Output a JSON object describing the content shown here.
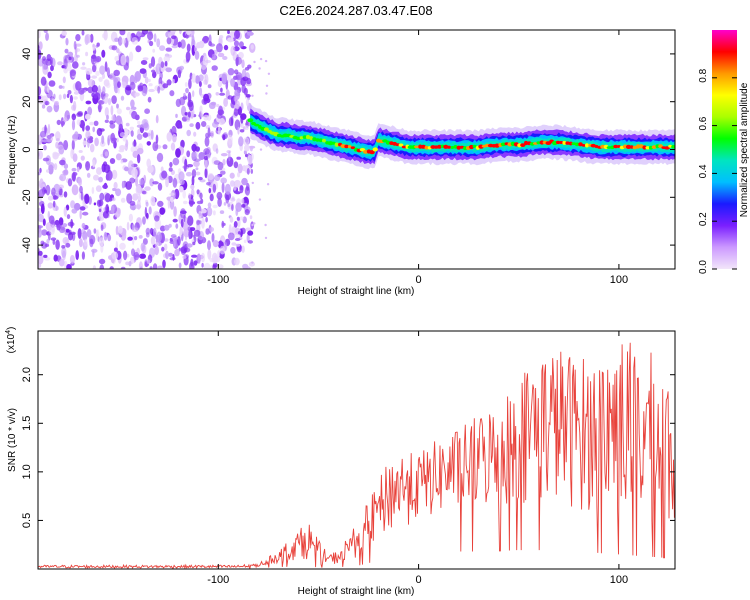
{
  "title": "C2E6.2024.287.03.47.E08",
  "chart_data": [
    {
      "type": "heatmap",
      "xlabel": "Height of straight line (km)",
      "ylabel": "Frequency (Hz)",
      "xlim": [
        -190,
        128
      ],
      "ylim": [
        -50,
        50
      ],
      "xticks": [
        -100,
        0,
        100
      ],
      "yticks": [
        -40,
        -20,
        0,
        20,
        40
      ],
      "noise_region_x": [
        -190,
        -83
      ],
      "ridge": {
        "x": [
          -84,
          -80,
          -75,
          -70,
          -65,
          -60,
          -55,
          -50,
          -45,
          -40,
          -35,
          -30,
          -25,
          -22,
          -20,
          -15,
          -10,
          -5,
          0,
          10,
          20,
          30,
          40,
          50,
          60,
          70,
          80,
          90,
          100,
          110,
          120,
          128
        ],
        "y": [
          12,
          10,
          8,
          6,
          6,
          5,
          5,
          4,
          3,
          2,
          1,
          0,
          -1,
          -1,
          4,
          3,
          2,
          1,
          1,
          1,
          1,
          1,
          2,
          2,
          3,
          3,
          2,
          1,
          1,
          1,
          1,
          1
        ]
      },
      "colorbar": {
        "label": "Normalized spectral amplitude",
        "range": [
          0,
          1
        ],
        "ticks": [
          0.0,
          0.2,
          0.4,
          0.6,
          0.8
        ],
        "tick_labels": [
          "0.0",
          "0.2",
          "0.4",
          "0.6",
          "0.8"
        ],
        "colors": [
          "#f2e6fa",
          "#cc99ff",
          "#7a1fff",
          "#1a1aff",
          "#00bfff",
          "#00e5c0",
          "#00ff00",
          "#aaff00",
          "#ffff00",
          "#ff9900",
          "#ff0000",
          "#ff00cc"
        ]
      },
      "grid": false
    },
    {
      "type": "line",
      "xlabel": "Height of straight line (km)",
      "ylabel": "SNR (10 * v/v)",
      "y_multiplier_label": "(x10",
      "y_multiplier_exp": "4",
      "xlim": [
        -190,
        128
      ],
      "ylim": [
        0,
        2.45
      ],
      "xticks": [
        -100,
        0,
        100
      ],
      "yticks": [
        0.5,
        1.0,
        1.5,
        2.0
      ],
      "ytick_labels": [
        "0.5",
        "1.0",
        "1.5",
        "2.0"
      ],
      "line_color": "#e8413a",
      "envelope": {
        "x": [
          -190,
          -90,
          -80,
          -75,
          -70,
          -65,
          -60,
          -55,
          -50,
          -45,
          -40,
          -35,
          -30,
          -25,
          -20,
          -15,
          -10,
          -5,
          0,
          10,
          20,
          30,
          40,
          50,
          60,
          70,
          80,
          90,
          100,
          110,
          120,
          128
        ],
        "low": [
          0.01,
          0.01,
          0.02,
          0.05,
          0.06,
          0.08,
          0.1,
          0.1,
          0.05,
          0.04,
          0.05,
          0.1,
          0.12,
          0.2,
          0.3,
          0.35,
          0.4,
          0.45,
          0.5,
          0.55,
          0.6,
          0.6,
          0.62,
          0.65,
          0.65,
          0.65,
          0.6,
          0.55,
          0.5,
          0.45,
          0.4,
          0.35
        ],
        "high": [
          0.04,
          0.04,
          0.06,
          0.12,
          0.2,
          0.3,
          0.4,
          0.5,
          0.3,
          0.15,
          0.2,
          0.35,
          0.5,
          0.7,
          0.9,
          1.15,
          1.25,
          1.2,
          1.2,
          1.35,
          1.45,
          1.6,
          1.75,
          2.0,
          2.3,
          2.3,
          2.2,
          2.2,
          2.45,
          2.3,
          2.2,
          1.95
        ]
      },
      "grid": false
    }
  ]
}
